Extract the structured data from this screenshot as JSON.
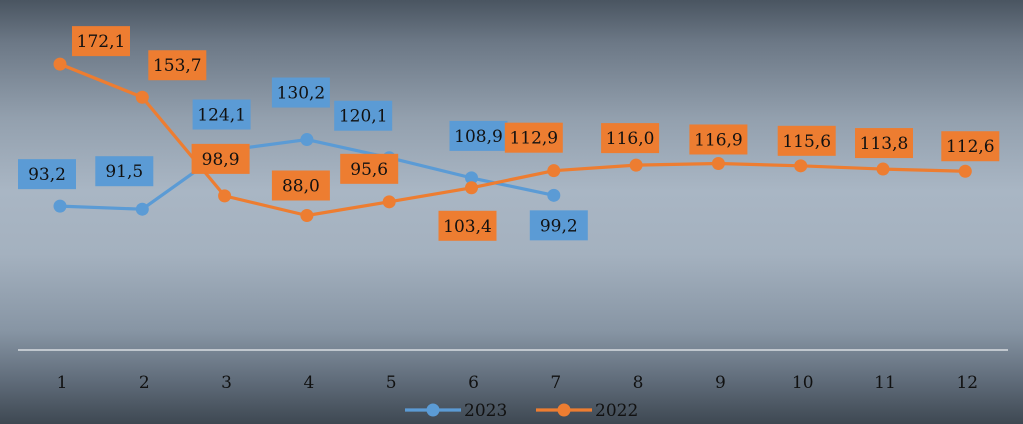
{
  "chart_data": {
    "type": "line",
    "categories": [
      "1",
      "2",
      "3",
      "4",
      "5",
      "6",
      "7",
      "8",
      "9",
      "10",
      "11",
      "12"
    ],
    "series": [
      {
        "name": "2023",
        "color": "#5b9bd5",
        "values": [
          93.2,
          91.5,
          124.1,
          130.2,
          120.1,
          108.9,
          99.2,
          null,
          null,
          null,
          null,
          null
        ],
        "labels": [
          "93,2",
          "91,5",
          "124,1",
          "130,2",
          "120,1",
          "108,9",
          "99,2",
          null,
          null,
          null,
          null,
          null
        ]
      },
      {
        "name": "2022",
        "color": "#ed7d31",
        "values": [
          172.1,
          153.7,
          98.9,
          88.0,
          95.6,
          103.4,
          112.9,
          116.0,
          116.9,
          115.6,
          113.8,
          112.6
        ],
        "labels": [
          "172,1",
          "153,7",
          "98,9",
          "88,0",
          "95,6",
          "103,4",
          "112,9",
          "116,0",
          "116,9",
          "115,6",
          "113,8",
          "112,6"
        ]
      }
    ],
    "xlabel": "",
    "ylabel": "",
    "y_axis_visible": false,
    "grid": false,
    "legend_position": "bottom"
  }
}
